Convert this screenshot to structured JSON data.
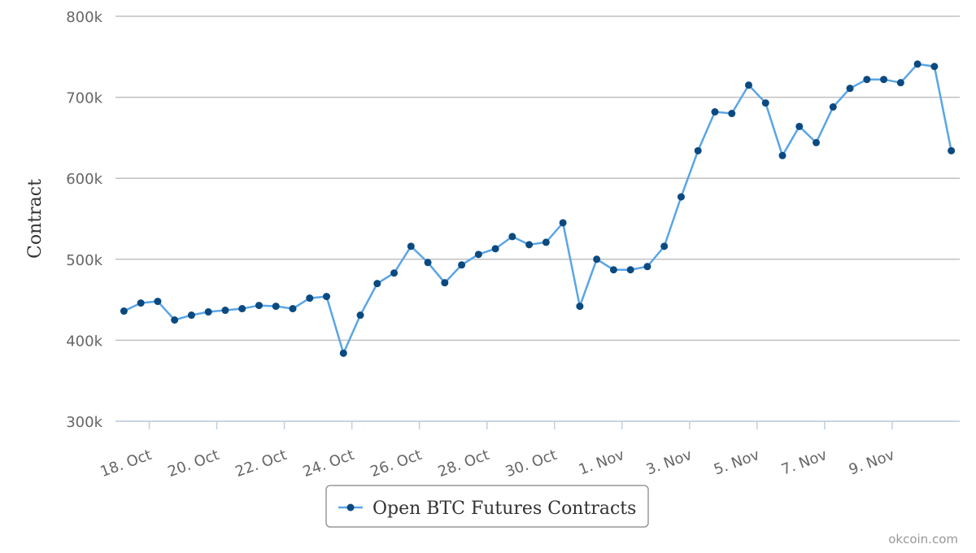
{
  "chart_data": {
    "type": "line",
    "y_label": "Contract",
    "credits": "okcoin.com",
    "x": [
      17.25,
      17.75,
      18.25,
      18.75,
      19.25,
      19.75,
      20.25,
      20.75,
      21.25,
      21.75,
      22.25,
      22.75,
      23.25,
      23.75,
      24.25,
      24.75,
      25.25,
      25.75,
      26.25,
      26.75,
      27.25,
      27.75,
      28.25,
      28.75,
      29.25,
      29.75,
      30.25,
      30.75,
      31.25,
      31.75,
      32.25,
      32.75,
      33.25,
      33.75,
      34.25,
      34.75,
      35.25,
      35.75,
      36.25,
      36.75,
      37.25,
      37.75,
      38.25,
      38.75,
      39.25,
      39.75,
      40.25,
      40.75,
      41.25,
      41.75
    ],
    "series": [
      {
        "name": "Open BTC Futures Contracts",
        "color": "#5aa5e6",
        "marker_color": "#0b4a80",
        "values": [
          436000,
          446000,
          448000,
          425000,
          431000,
          435000,
          437000,
          439000,
          443000,
          442000,
          439000,
          452000,
          454000,
          384000,
          431000,
          470000,
          483000,
          516000,
          496000,
          471000,
          493000,
          506000,
          513000,
          528000,
          518000,
          521000,
          545000,
          442000,
          500000,
          487000,
          487000,
          491000,
          516000,
          577000,
          634000,
          682000,
          680000,
          715000,
          693000,
          628000,
          664000,
          644000,
          688000,
          711000,
          722000,
          722000,
          718000,
          741000,
          738000,
          634000
        ]
      }
    ],
    "xlim": [
      17,
      42
    ],
    "xticks": [
      {
        "value": 18,
        "label": "18. Oct"
      },
      {
        "value": 20,
        "label": "20. Oct"
      },
      {
        "value": 22,
        "label": "22. Oct"
      },
      {
        "value": 24,
        "label": "24. Oct"
      },
      {
        "value": 26,
        "label": "26. Oct"
      },
      {
        "value": 28,
        "label": "28. Oct"
      },
      {
        "value": 30,
        "label": "30. Oct"
      },
      {
        "value": 32,
        "label": "1. Nov"
      },
      {
        "value": 34,
        "label": "3. Nov"
      },
      {
        "value": 36,
        "label": "5. Nov"
      },
      {
        "value": 38,
        "label": "7. Nov"
      },
      {
        "value": 40,
        "label": "9. Nov"
      }
    ],
    "ylim": [
      300000,
      800000
    ],
    "yticks": [
      {
        "value": 300000,
        "label": "300k"
      },
      {
        "value": 400000,
        "label": "400k"
      },
      {
        "value": 500000,
        "label": "500k"
      },
      {
        "value": 600000,
        "label": "600k"
      },
      {
        "value": 700000,
        "label": "700k"
      },
      {
        "value": 800000,
        "label": "800k"
      }
    ],
    "grid": true
  }
}
